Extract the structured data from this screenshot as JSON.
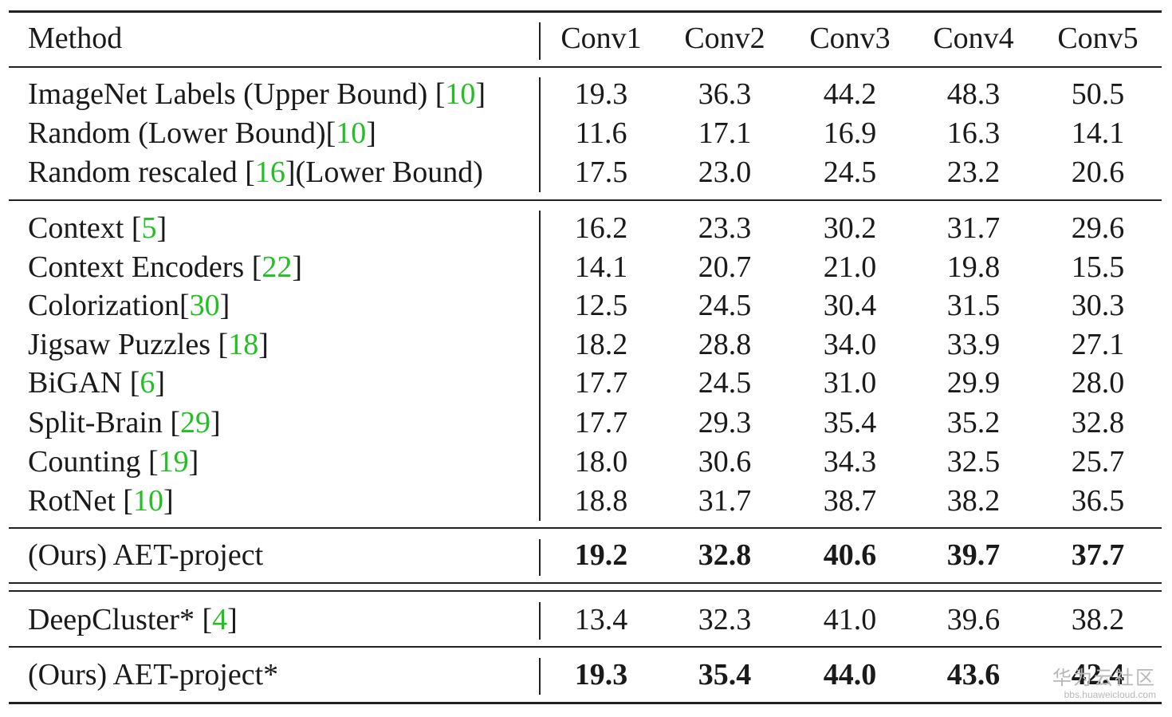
{
  "table": {
    "header": {
      "method": "Method",
      "columns": [
        "Conv1",
        "Conv2",
        "Conv3",
        "Conv4",
        "Conv5"
      ]
    },
    "groups": [
      {
        "bold": false,
        "rows": [
          {
            "method": "ImageNet Labels (Upper Bound) [",
            "cite": "10",
            "suffix": "]",
            "values": [
              "19.3",
              "36.3",
              "44.2",
              "48.3",
              "50.5"
            ]
          },
          {
            "method": "Random (Lower Bound)[",
            "cite": "10",
            "suffix": "]",
            "values": [
              "11.6",
              "17.1",
              "16.9",
              "16.3",
              "14.1"
            ]
          },
          {
            "method": "Random rescaled [",
            "cite": "16",
            "suffix": "](Lower Bound)",
            "values": [
              "17.5",
              "23.0",
              "24.5",
              "23.2",
              "20.6"
            ]
          }
        ]
      },
      {
        "bold": false,
        "rows": [
          {
            "method": "Context [",
            "cite": "5",
            "suffix": "]",
            "values": [
              "16.2",
              "23.3",
              "30.2",
              "31.7",
              "29.6"
            ]
          },
          {
            "method": "Context Encoders [",
            "cite": "22",
            "suffix": "]",
            "values": [
              "14.1",
              "20.7",
              "21.0",
              "19.8",
              "15.5"
            ]
          },
          {
            "method": "Colorization[",
            "cite": "30",
            "suffix": "]",
            "values": [
              "12.5",
              "24.5",
              "30.4",
              "31.5",
              "30.3"
            ]
          },
          {
            "method": "Jigsaw Puzzles [",
            "cite": "18",
            "suffix": "]",
            "values": [
              "18.2",
              "28.8",
              "34.0",
              "33.9",
              "27.1"
            ]
          },
          {
            "method": "BiGAN [",
            "cite": "6",
            "suffix": "]",
            "values": [
              "17.7",
              "24.5",
              "31.0",
              "29.9",
              "28.0"
            ]
          },
          {
            "method": "Split-Brain [",
            "cite": "29",
            "suffix": "]",
            "values": [
              "17.7",
              "29.3",
              "35.4",
              "35.2",
              "32.8"
            ]
          },
          {
            "method": "Counting [",
            "cite": "19",
            "suffix": "]",
            "values": [
              "18.0",
              "30.6",
              "34.3",
              "32.5",
              "25.7"
            ]
          },
          {
            "method": "RotNet [",
            "cite": "10",
            "suffix": "]",
            "values": [
              "18.8",
              "31.7",
              "38.7",
              "38.2",
              "36.5"
            ]
          }
        ]
      },
      {
        "bold": true,
        "rows": [
          {
            "method": "(Ours) AET-project",
            "cite": "",
            "suffix": "",
            "values": [
              "19.2",
              "32.8",
              "40.6",
              "39.7",
              "37.7"
            ]
          }
        ]
      },
      {
        "bold": false,
        "rows": [
          {
            "method": "DeepCluster* [",
            "cite": "4",
            "suffix": "]",
            "values": [
              "13.4",
              "32.3",
              "41.0",
              "39.6",
              "38.2"
            ]
          }
        ]
      },
      {
        "bold": true,
        "rows": [
          {
            "method": "(Ours) AET-project*",
            "cite": "",
            "suffix": "",
            "values": [
              "19.3",
              "35.4",
              "44.0",
              "43.6",
              "42.4"
            ]
          }
        ]
      }
    ]
  },
  "colors": {
    "citation": "#22c022",
    "rule": "#222222",
    "text": "#1a1a1a"
  },
  "watermark": {
    "brand": "华为云社区",
    "url": "bbs.huaweicloud.com"
  }
}
